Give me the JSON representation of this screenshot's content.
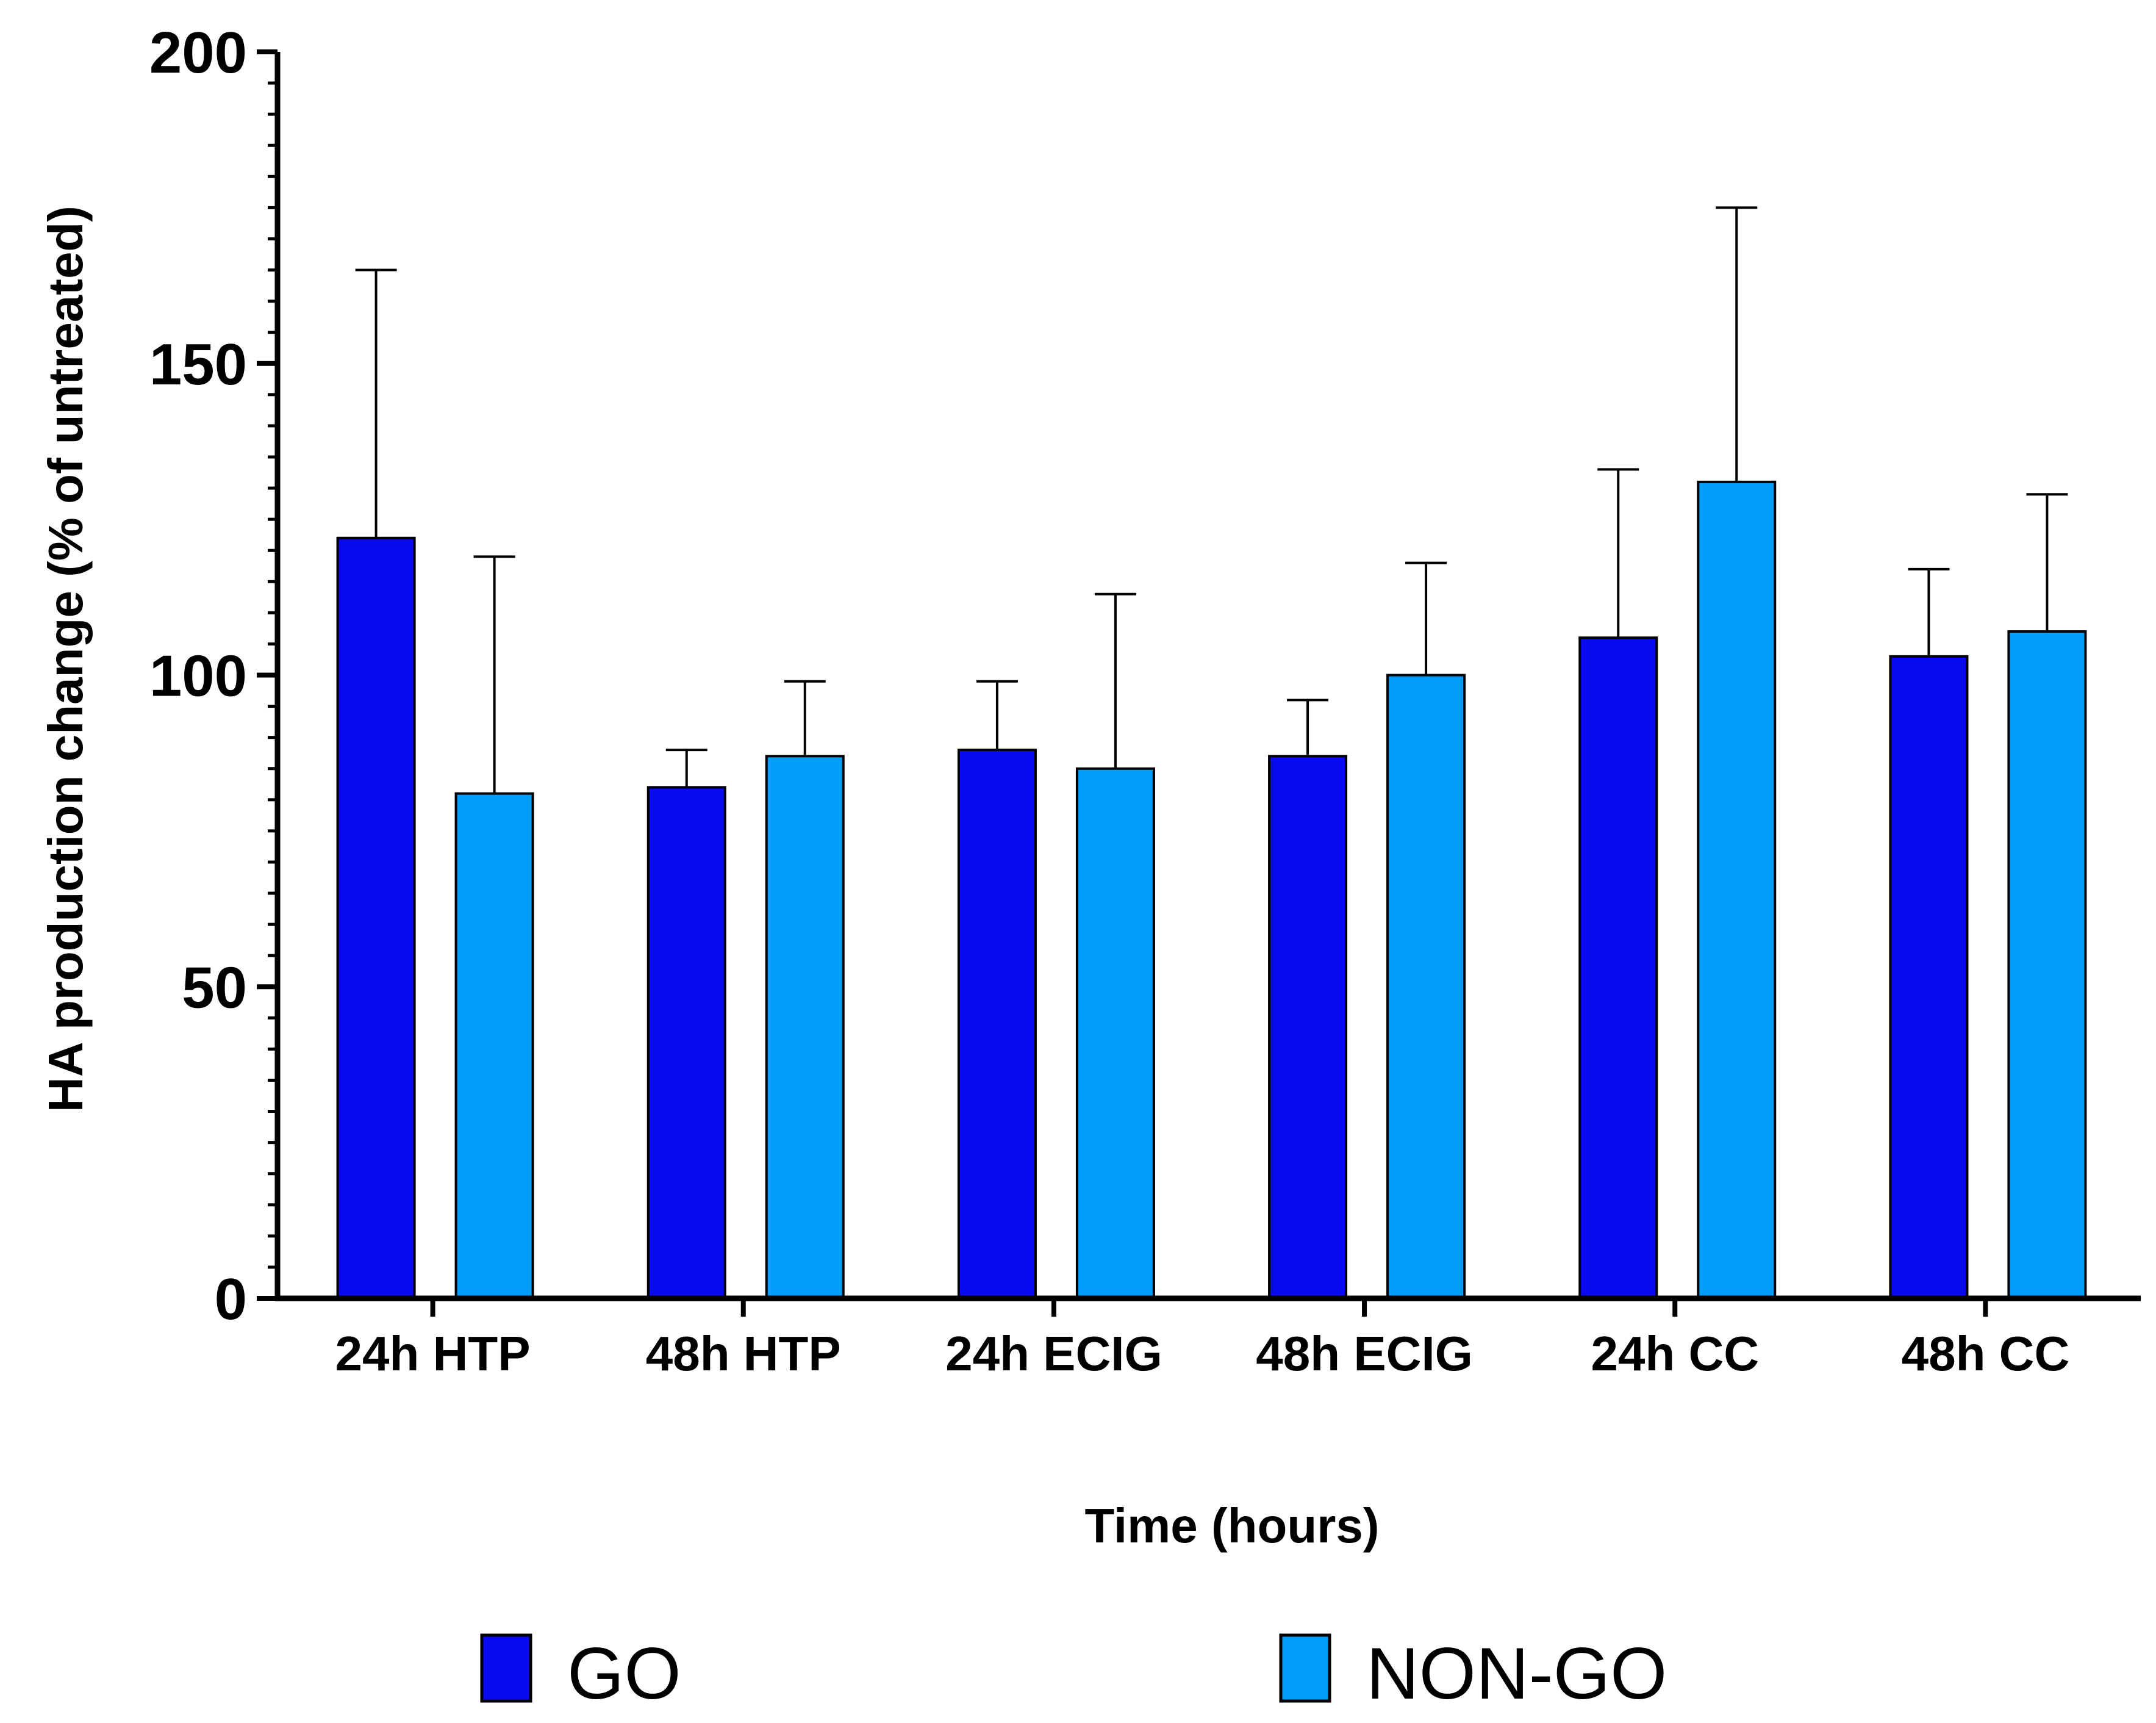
{
  "chart_data": {
    "type": "bar",
    "title": "",
    "xlabel": "Time (hours)",
    "ylabel": "HA production change (% of untreated)",
    "ylim": [
      0,
      200
    ],
    "yticks": [
      0,
      50,
      100,
      150,
      200
    ],
    "grid": false,
    "legend_position": "bottom",
    "categories": [
      "24h HTP",
      "48h HTP",
      "24h ECIG",
      "48h ECIG",
      "24h CC",
      "48h CC"
    ],
    "series": [
      {
        "name": "GO",
        "color": "#0a0af0",
        "values": [
          122,
          82,
          88,
          87,
          106,
          103
        ],
        "errors": [
          43,
          6,
          11,
          9,
          27,
          14
        ]
      },
      {
        "name": "NON-GO",
        "color": "#009ef8",
        "values": [
          81,
          87,
          85,
          100,
          131,
          107
        ],
        "errors": [
          38,
          12,
          28,
          18,
          44,
          22
        ]
      }
    ]
  }
}
